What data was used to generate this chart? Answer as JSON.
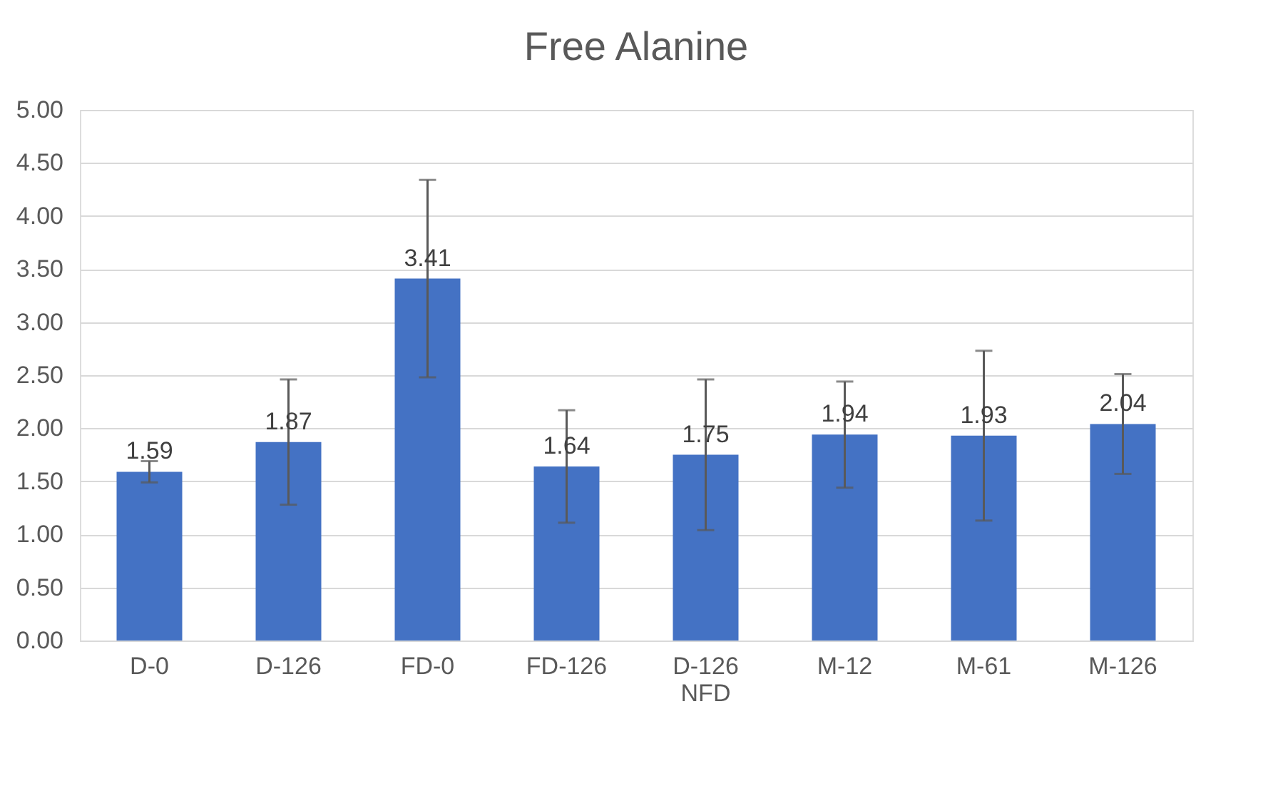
{
  "chart_data": {
    "type": "bar",
    "title": "Free Alanine",
    "categories": [
      "D-0",
      "D-126",
      "FD-0",
      "FD-126",
      "D-126 NFD",
      "M-12",
      "M-61",
      "M-126"
    ],
    "values": [
      1.59,
      1.87,
      3.41,
      1.64,
      1.75,
      1.94,
      1.93,
      2.04
    ],
    "errors": [
      0.1,
      0.59,
      0.93,
      0.53,
      0.71,
      0.5,
      0.8,
      0.47
    ],
    "color": "#4472c4",
    "data_labels": true,
    "grid": "y",
    "ylim": [
      0,
      5
    ],
    "yticks": [
      {
        "value": 0,
        "label": "0.00"
      },
      {
        "value": 0.5,
        "label": "0.50"
      },
      {
        "value": 1,
        "label": "1.00"
      },
      {
        "value": 1.5,
        "label": "1.50"
      },
      {
        "value": 2,
        "label": "2.00"
      },
      {
        "value": 2.5,
        "label": "2.50"
      },
      {
        "value": 3,
        "label": "3.00"
      },
      {
        "value": 3.5,
        "label": "3.50"
      },
      {
        "value": 4,
        "label": "4.00"
      },
      {
        "value": 4.5,
        "label": "4.50"
      },
      {
        "value": 5,
        "label": "5.00"
      }
    ]
  }
}
